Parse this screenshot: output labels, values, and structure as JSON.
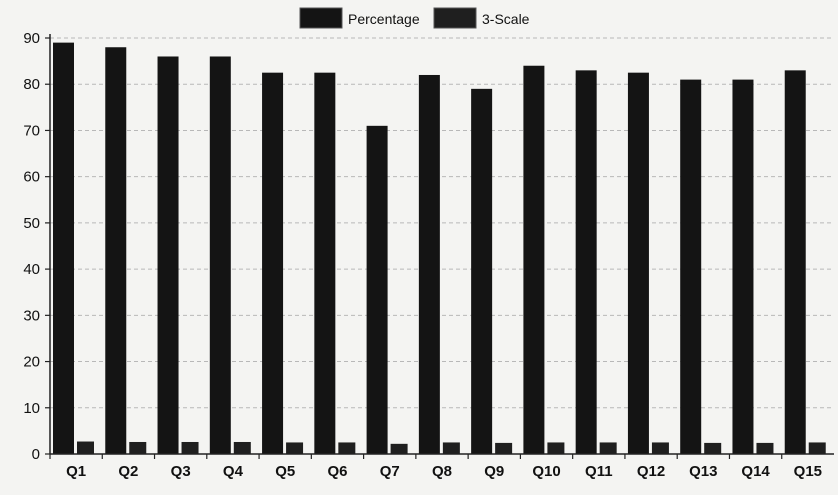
{
  "chart_data": {
    "type": "bar",
    "categories": [
      "Q1",
      "Q2",
      "Q3",
      "Q4",
      "Q5",
      "Q6",
      "Q7",
      "Q8",
      "Q9",
      "Q10",
      "Q11",
      "Q12",
      "Q13",
      "Q14",
      "Q15"
    ],
    "series": [
      {
        "name": "Percentage",
        "color": "#141414",
        "values": [
          89,
          88,
          86,
          86,
          82.5,
          82.5,
          71,
          82,
          79,
          84,
          83,
          82.5,
          81,
          81,
          83
        ]
      },
      {
        "name": "3-Scale",
        "color": "#1f1f1f",
        "values": [
          2.7,
          2.6,
          2.6,
          2.6,
          2.5,
          2.5,
          2.2,
          2.5,
          2.4,
          2.5,
          2.5,
          2.5,
          2.4,
          2.4,
          2.5
        ]
      }
    ],
    "ylim": [
      0,
      90
    ],
    "yticks": [
      0,
      10,
      20,
      30,
      40,
      50,
      60,
      70,
      80,
      90
    ],
    "grid": true,
    "legend_position": "top-center",
    "title": "",
    "xlabel": "",
    "ylabel": ""
  }
}
